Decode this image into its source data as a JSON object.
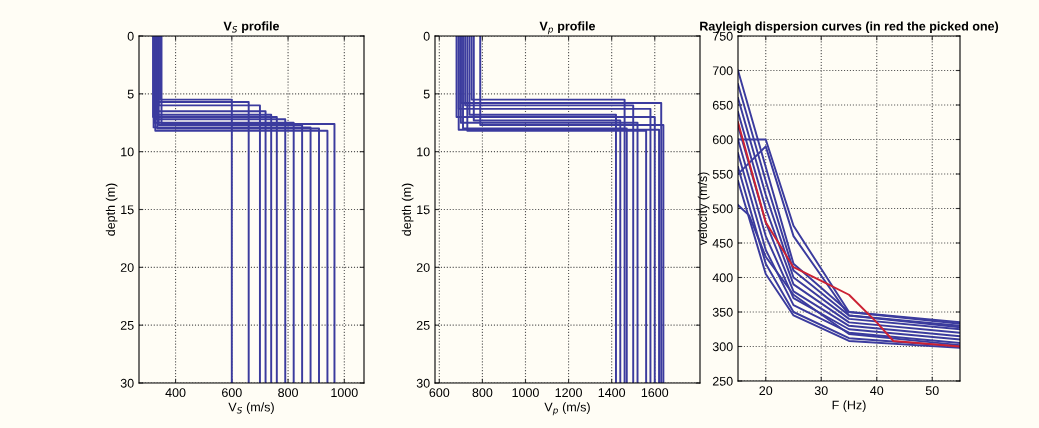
{
  "chart_data": [
    {
      "type": "line",
      "title": "V$_{S}$ profile",
      "xlabel": "V$_{S}$ (m/s)",
      "ylabel": "depth (m)",
      "xlim": [
        270,
        1070
      ],
      "xticks": [
        400,
        600,
        800,
        1000
      ],
      "ylim": [
        30,
        0
      ],
      "yticks": [
        0,
        5,
        10,
        15,
        20,
        25,
        30
      ],
      "grid": true,
      "line_style": "solid",
      "marker": "none",
      "series": [
        {
          "color": "#3b3b9e",
          "x": [
            345,
            345,
            600,
            600
          ],
          "values": [
            0,
            5.5,
            5.5,
            30
          ]
        },
        {
          "color": "#3b3b9e",
          "x": [
            330,
            330,
            660,
            660
          ],
          "values": [
            0,
            5.7,
            5.7,
            30
          ]
        },
        {
          "color": "#3b3b9e",
          "x": [
            340,
            340,
            700,
            700
          ],
          "values": [
            0,
            6.0,
            6.0,
            30
          ]
        },
        {
          "color": "#3b3b9e",
          "x": [
            325,
            325,
            720,
            720
          ],
          "values": [
            0,
            6.5,
            6.5,
            30
          ]
        },
        {
          "color": "#3b3b9e",
          "x": [
            335,
            335,
            740,
            740
          ],
          "values": [
            0,
            6.8,
            6.8,
            30
          ]
        },
        {
          "color": "#3b3b9e",
          "x": [
            320,
            320,
            760,
            760
          ],
          "values": [
            0,
            7.0,
            7.0,
            30
          ]
        },
        {
          "color": "#3b3b9e",
          "x": [
            330,
            330,
            790,
            790
          ],
          "values": [
            0,
            7.2,
            7.2,
            30
          ]
        },
        {
          "color": "#3b3b9e",
          "x": [
            325,
            325,
            820,
            820
          ],
          "values": [
            0,
            7.5,
            7.5,
            30
          ]
        },
        {
          "color": "#3b3b9e",
          "x": [
            340,
            340,
            850,
            850
          ],
          "values": [
            0,
            7.7,
            7.7,
            30
          ]
        },
        {
          "color": "#3b3b9e",
          "x": [
            322,
            322,
            880,
            880
          ],
          "values": [
            0,
            7.9,
            7.9,
            30
          ]
        },
        {
          "color": "#3b3b9e",
          "x": [
            335,
            335,
            910,
            910
          ],
          "values": [
            0,
            8.0,
            8.0,
            30
          ]
        },
        {
          "color": "#3b3b9e",
          "x": [
            328,
            328,
            940,
            940
          ],
          "values": [
            0,
            8.2,
            8.2,
            30
          ]
        },
        {
          "color": "#3b3b9e",
          "x": [
            350,
            350,
            965,
            965
          ],
          "values": [
            0,
            7.6,
            7.6,
            30
          ]
        }
      ]
    },
    {
      "type": "line",
      "title": "V$_{p}$ profile",
      "xlabel": "V$_{p}$ (m/s)",
      "ylabel": "depth (m)",
      "xlim": [
        580,
        1810
      ],
      "xticks": [
        600,
        800,
        1000,
        1200,
        1400,
        1600
      ],
      "ylim": [
        30,
        0
      ],
      "yticks": [
        0,
        5,
        10,
        15,
        20,
        25,
        30
      ],
      "grid": true,
      "line_style": "solid",
      "marker": "none",
      "series": [
        {
          "color": "#3b3b9e",
          "x": [
            750,
            750,
            1460,
            1460
          ],
          "values": [
            0,
            5.5,
            5.5,
            30
          ]
        },
        {
          "color": "#3b3b9e",
          "x": [
            700,
            700,
            1630,
            1630
          ],
          "values": [
            0,
            5.8,
            5.8,
            30
          ]
        },
        {
          "color": "#3b3b9e",
          "x": [
            720,
            720,
            1500,
            1500
          ],
          "values": [
            0,
            6.0,
            6.0,
            30
          ]
        },
        {
          "color": "#3b3b9e",
          "x": [
            690,
            690,
            1580,
            1580
          ],
          "values": [
            0,
            6.3,
            6.3,
            30
          ]
        },
        {
          "color": "#3b3b9e",
          "x": [
            740,
            740,
            1420,
            1420
          ],
          "values": [
            0,
            6.8,
            6.8,
            30
          ]
        },
        {
          "color": "#3b3b9e",
          "x": [
            680,
            680,
            1600,
            1600
          ],
          "values": [
            0,
            7.0,
            7.0,
            30
          ]
        },
        {
          "color": "#3b3b9e",
          "x": [
            760,
            760,
            1440,
            1440
          ],
          "values": [
            0,
            7.3,
            7.3,
            30
          ]
        },
        {
          "color": "#3b3b9e",
          "x": [
            700,
            700,
            1520,
            1520
          ],
          "values": [
            0,
            7.5,
            7.5,
            30
          ]
        },
        {
          "color": "#3b3b9e",
          "x": [
            790,
            790,
            1640,
            1640
          ],
          "values": [
            0,
            7.7,
            7.7,
            30
          ]
        },
        {
          "color": "#3b3b9e",
          "x": [
            710,
            710,
            1470,
            1470
          ],
          "values": [
            0,
            8.0,
            8.0,
            30
          ]
        },
        {
          "color": "#3b3b9e",
          "x": [
            730,
            730,
            1560,
            1560
          ],
          "values": [
            0,
            8.2,
            8.2,
            30
          ]
        },
        {
          "color": "#3b3b9e",
          "x": [
            690,
            690,
            1620,
            1620
          ],
          "values": [
            0,
            8.1,
            8.1,
            30
          ]
        }
      ]
    },
    {
      "type": "line",
      "title": "Rayleigh dispersion curves (in red the picked one)",
      "xlabel": "F (Hz)",
      "ylabel": "velocity (m/s)",
      "xlim": [
        15,
        55
      ],
      "xticks": [
        20,
        30,
        40,
        50
      ],
      "ylim": [
        250,
        750
      ],
      "yticks": [
        250,
        300,
        350,
        400,
        450,
        500,
        550,
        600,
        650,
        700,
        750
      ],
      "grid": true,
      "line_style": "solid",
      "marker": "none",
      "series": [
        {
          "color": "#3b3b9e",
          "x": [
            15,
            20,
            25,
            35,
            55
          ],
          "values": [
            700,
            560,
            420,
            350,
            335
          ]
        },
        {
          "color": "#3b3b9e",
          "x": [
            15,
            20,
            25,
            35,
            55
          ],
          "values": [
            680,
            540,
            410,
            345,
            330
          ]
        },
        {
          "color": "#3b3b9e",
          "x": [
            15,
            20,
            25,
            35,
            55
          ],
          "values": [
            660,
            520,
            400,
            340,
            325
          ]
        },
        {
          "color": "#3b3b9e",
          "x": [
            15,
            20,
            25,
            35,
            55
          ],
          "values": [
            640,
            500,
            390,
            335,
            320
          ]
        },
        {
          "color": "#3b3b9e",
          "x": [
            15,
            20,
            25,
            35,
            55
          ],
          "values": [
            620,
            480,
            380,
            330,
            315
          ]
        },
        {
          "color": "#3b3b9e",
          "x": [
            15,
            20,
            25,
            35,
            55
          ],
          "values": [
            600,
            460,
            370,
            325,
            310
          ]
        },
        {
          "color": "#3b3b9e",
          "x": [
            15,
            20,
            25,
            35,
            55
          ],
          "values": [
            580,
            440,
            360,
            320,
            305
          ]
        },
        {
          "color": "#3b3b9e",
          "x": [
            15,
            20,
            25,
            35,
            55
          ],
          "values": [
            560,
            420,
            350,
            312,
            300
          ]
        },
        {
          "color": "#3b3b9e",
          "x": [
            15,
            20,
            25,
            35,
            55
          ],
          "values": [
            540,
            405,
            345,
            308,
            298
          ]
        },
        {
          "color": "#3b3b9e",
          "x": [
            15,
            17,
            20,
            25,
            35,
            55
          ],
          "values": [
            505,
            490,
            430,
            375,
            318,
            302
          ]
        },
        {
          "color": "#3b3b9e",
          "x": [
            15,
            20,
            25,
            35,
            55
          ],
          "values": [
            600,
            600,
            475,
            350,
            333
          ]
        },
        {
          "color": "#3b3b9e",
          "x": [
            15,
            20,
            25,
            35,
            55
          ],
          "values": [
            550,
            590,
            460,
            345,
            328
          ]
        },
        {
          "color": "#cc2233",
          "x": [
            15,
            20,
            25,
            30,
            35,
            40,
            43,
            55
          ],
          "values": [
            625,
            480,
            415,
            395,
            375,
            335,
            308,
            300
          ]
        }
      ]
    }
  ]
}
